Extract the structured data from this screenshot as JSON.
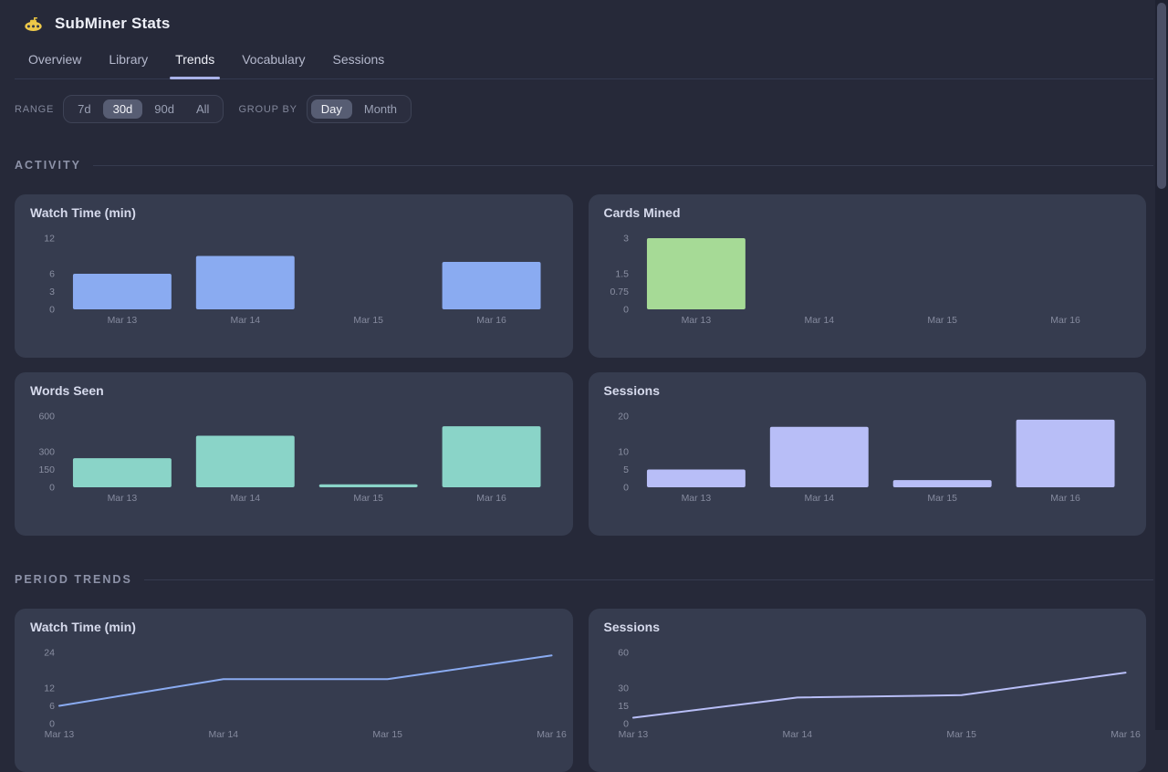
{
  "app": {
    "title": "SubMiner Stats",
    "logo_icon": "submarine-icon"
  },
  "tabs": [
    {
      "label": "Overview",
      "active": false
    },
    {
      "label": "Library",
      "active": false
    },
    {
      "label": "Trends",
      "active": true
    },
    {
      "label": "Vocabulary",
      "active": false
    },
    {
      "label": "Sessions",
      "active": false
    }
  ],
  "controls": {
    "range": {
      "label": "RANGE",
      "options": [
        {
          "label": "7d",
          "selected": false
        },
        {
          "label": "30d",
          "selected": true
        },
        {
          "label": "90d",
          "selected": false
        },
        {
          "label": "All",
          "selected": false
        }
      ]
    },
    "group_by": {
      "label": "GROUP BY",
      "options": [
        {
          "label": "Day",
          "selected": true
        },
        {
          "label": "Month",
          "selected": false
        }
      ]
    }
  },
  "sections": [
    {
      "title": "ACTIVITY"
    },
    {
      "title": "PERIOD TRENDS"
    }
  ],
  "chart_data": [
    {
      "type": "bar",
      "title": "Watch Time (min)",
      "categories": [
        "Mar 13",
        "Mar 14",
        "Mar 15",
        "Mar 16"
      ],
      "values": [
        6,
        9,
        0,
        8
      ],
      "yticks": [
        0,
        3,
        6,
        12
      ],
      "ylim": [
        0,
        12
      ],
      "xlabel": "",
      "ylabel": "",
      "grid": false,
      "legend": false,
      "color": "#8aabf1"
    },
    {
      "type": "bar",
      "title": "Cards Mined",
      "categories": [
        "Mar 13",
        "Mar 14",
        "Mar 15",
        "Mar 16"
      ],
      "values": [
        3,
        0,
        0,
        0
      ],
      "yticks": [
        0,
        0.75,
        1.5,
        3
      ],
      "ylim": [
        0,
        3
      ],
      "xlabel": "",
      "ylabel": "",
      "grid": false,
      "legend": false,
      "color": "#a6da96"
    },
    {
      "type": "bar",
      "title": "Words Seen",
      "categories": [
        "Mar 13",
        "Mar 14",
        "Mar 15",
        "Mar 16"
      ],
      "values": [
        245,
        435,
        25,
        515
      ],
      "yticks": [
        0,
        150,
        300,
        600
      ],
      "ylim": [
        0,
        600
      ],
      "xlabel": "",
      "ylabel": "",
      "grid": false,
      "legend": false,
      "color": "#8ad4c8"
    },
    {
      "type": "bar",
      "title": "Sessions",
      "categories": [
        "Mar 13",
        "Mar 14",
        "Mar 15",
        "Mar 16"
      ],
      "values": [
        5,
        17,
        2,
        19
      ],
      "yticks": [
        0,
        5,
        10,
        20
      ],
      "ylim": [
        0,
        20
      ],
      "xlabel": "",
      "ylabel": "",
      "grid": false,
      "legend": false,
      "color": "#b8bef7"
    },
    {
      "type": "line",
      "title": "Watch Time (min)",
      "categories": [
        "Mar 13",
        "Mar 14",
        "Mar 15",
        "Mar 16"
      ],
      "values": [
        6,
        15,
        15,
        23
      ],
      "yticks": [
        0,
        6,
        12,
        24
      ],
      "ylim": [
        0,
        24
      ],
      "xlabel": "",
      "ylabel": "",
      "grid": false,
      "legend": false,
      "color": "#8aabf1"
    },
    {
      "type": "line",
      "title": "Sessions",
      "categories": [
        "Mar 13",
        "Mar 14",
        "Mar 15",
        "Mar 16"
      ],
      "values": [
        5,
        22,
        24,
        43
      ],
      "yticks": [
        0,
        15,
        30,
        60
      ],
      "ylim": [
        0,
        60
      ],
      "xlabel": "",
      "ylabel": "",
      "grid": false,
      "legend": false,
      "color": "#b8bef7"
    }
  ],
  "colors": {
    "background": "#262939",
    "card": "#363c4f",
    "tab_underline": "#a9b2e8",
    "bar_blue": "#8aabf1",
    "bar_green": "#a6da96",
    "bar_teal": "#8ad4c8",
    "bar_lavender": "#b8bef7",
    "tick_text": "#8a8fa2",
    "selected_button_bg": "#575d73"
  }
}
